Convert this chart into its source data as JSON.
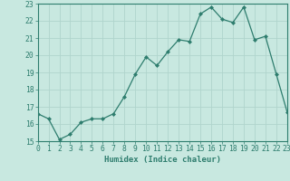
{
  "x": [
    0,
    1,
    2,
    3,
    4,
    5,
    6,
    7,
    8,
    9,
    10,
    11,
    12,
    13,
    14,
    15,
    16,
    17,
    18,
    19,
    20,
    21,
    22,
    23
  ],
  "y": [
    16.6,
    16.3,
    15.1,
    15.4,
    16.1,
    16.3,
    16.3,
    16.6,
    17.6,
    18.9,
    19.9,
    19.4,
    20.2,
    20.9,
    20.8,
    22.4,
    22.8,
    22.1,
    21.9,
    22.8,
    20.9,
    21.1,
    18.9,
    16.7
  ],
  "line_color": "#2e7d6e",
  "marker_color": "#2e7d6e",
  "bg_color": "#c8e8e0",
  "grid_color": "#b0d4cc",
  "xlabel": "Humidex (Indice chaleur)",
  "ylim": [
    15,
    23
  ],
  "xlim": [
    0,
    23
  ],
  "yticks": [
    15,
    16,
    17,
    18,
    19,
    20,
    21,
    22,
    23
  ],
  "xticks": [
    0,
    1,
    2,
    3,
    4,
    5,
    6,
    7,
    8,
    9,
    10,
    11,
    12,
    13,
    14,
    15,
    16,
    17,
    18,
    19,
    20,
    21,
    22,
    23
  ],
  "xlabel_fontsize": 6.5,
  "tick_fontsize": 5.8
}
